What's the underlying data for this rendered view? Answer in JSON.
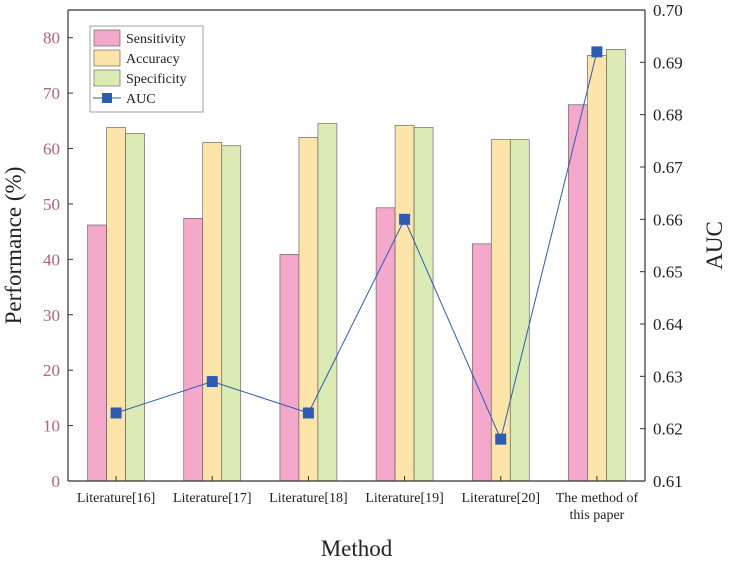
{
  "chart_data": {
    "type": "bar",
    "categories": [
      "Literature[16]",
      "Literature[17]",
      "Literature[18]",
      "Literature[19]",
      "Literature[20]",
      "The method of this paper"
    ],
    "category_lines": [
      [
        "Literature[16]"
      ],
      [
        "Literature[17]"
      ],
      [
        "Literature[18]"
      ],
      [
        "Literature[19]"
      ],
      [
        "Literature[20]"
      ],
      [
        "The method of",
        "this paper"
      ]
    ],
    "series": [
      {
        "name": "Sensitivity",
        "values": [
          46.2,
          47.4,
          40.9,
          49.3,
          42.8,
          67.9
        ],
        "color": "#f4a8cc"
      },
      {
        "name": "Accuracy",
        "values": [
          63.8,
          61.1,
          62.0,
          64.2,
          61.6,
          76.8
        ],
        "color": "#fde4a8"
      },
      {
        "name": "Specificity",
        "values": [
          62.7,
          60.5,
          64.5,
          63.8,
          61.6,
          77.9
        ],
        "color": "#dceab4"
      }
    ],
    "line_series": {
      "name": "AUC",
      "values": [
        0.623,
        0.629,
        0.623,
        0.66,
        0.618,
        0.692
      ],
      "color": "#2e5cb0",
      "axis": "right"
    },
    "xlabel": "Method",
    "ylabel": "Performance (%)",
    "y2label": "AUC",
    "ylim": [
      0,
      85
    ],
    "yticks": [
      "0",
      "10",
      "20",
      "30",
      "40",
      "50",
      "60",
      "70",
      "80"
    ],
    "y2lim": [
      0.61,
      0.7
    ],
    "y2ticks": [
      "0.61",
      "0.62",
      "0.63",
      "0.64",
      "0.65",
      "0.66",
      "0.67",
      "0.68",
      "0.69",
      "0.70"
    ],
    "legend": {
      "position": "top-left",
      "entries": [
        "Sensitivity",
        "Accuracy",
        "Specificity",
        "AUC"
      ]
    },
    "grid": false
  }
}
